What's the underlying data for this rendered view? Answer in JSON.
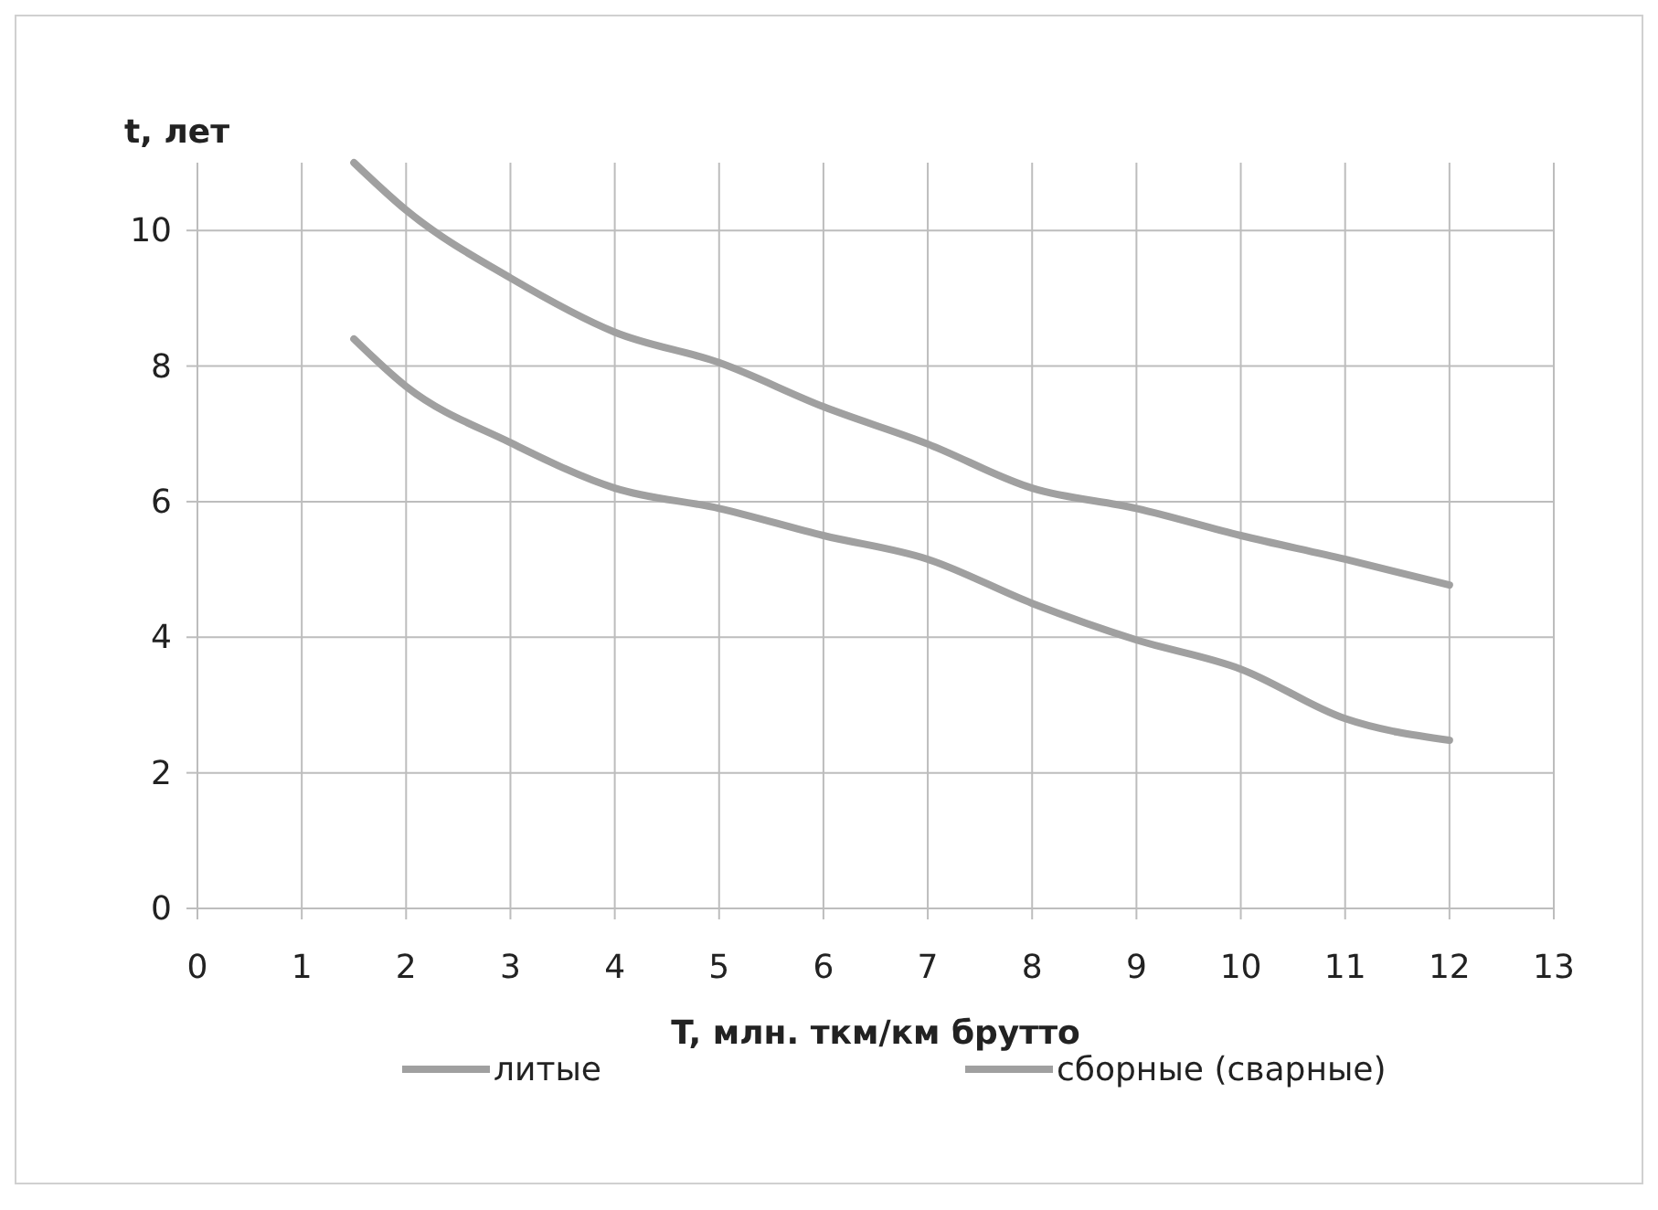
{
  "chart_data": {
    "type": "line",
    "xlabel": "T, млн. ткм/км брутто",
    "ylabel": "t, лет",
    "xlim": [
      0,
      13
    ],
    "xticks": [
      0,
      1,
      2,
      3,
      4,
      5,
      6,
      7,
      8,
      9,
      10,
      11,
      12,
      13
    ],
    "ylim": [
      0,
      11
    ],
    "yticks": [
      0,
      2,
      4,
      6,
      8,
      10
    ],
    "grid": true,
    "legend": "bottom",
    "marker": "none",
    "line_style": "solid",
    "series": [
      {
        "name": "литые",
        "color": "#a0a0a0",
        "x": [
          1.5,
          2,
          3,
          4,
          5,
          6,
          7,
          8,
          9,
          10,
          11,
          12
        ],
        "values": [
          11,
          10.3,
          9.3,
          8.5,
          8.05,
          7.4,
          6.85,
          6.2,
          5.9,
          5.5,
          5.15,
          4.77
        ]
      },
      {
        "name": "сборные (сварные)",
        "color": "#a0a0a0",
        "x": [
          1.5,
          2,
          3,
          4,
          5,
          6,
          7,
          8,
          9,
          10,
          11,
          12
        ],
        "values": [
          8.4,
          7.7,
          6.87,
          6.2,
          5.9,
          5.5,
          5.15,
          4.5,
          3.96,
          3.53,
          2.8,
          2.48
        ]
      }
    ]
  }
}
